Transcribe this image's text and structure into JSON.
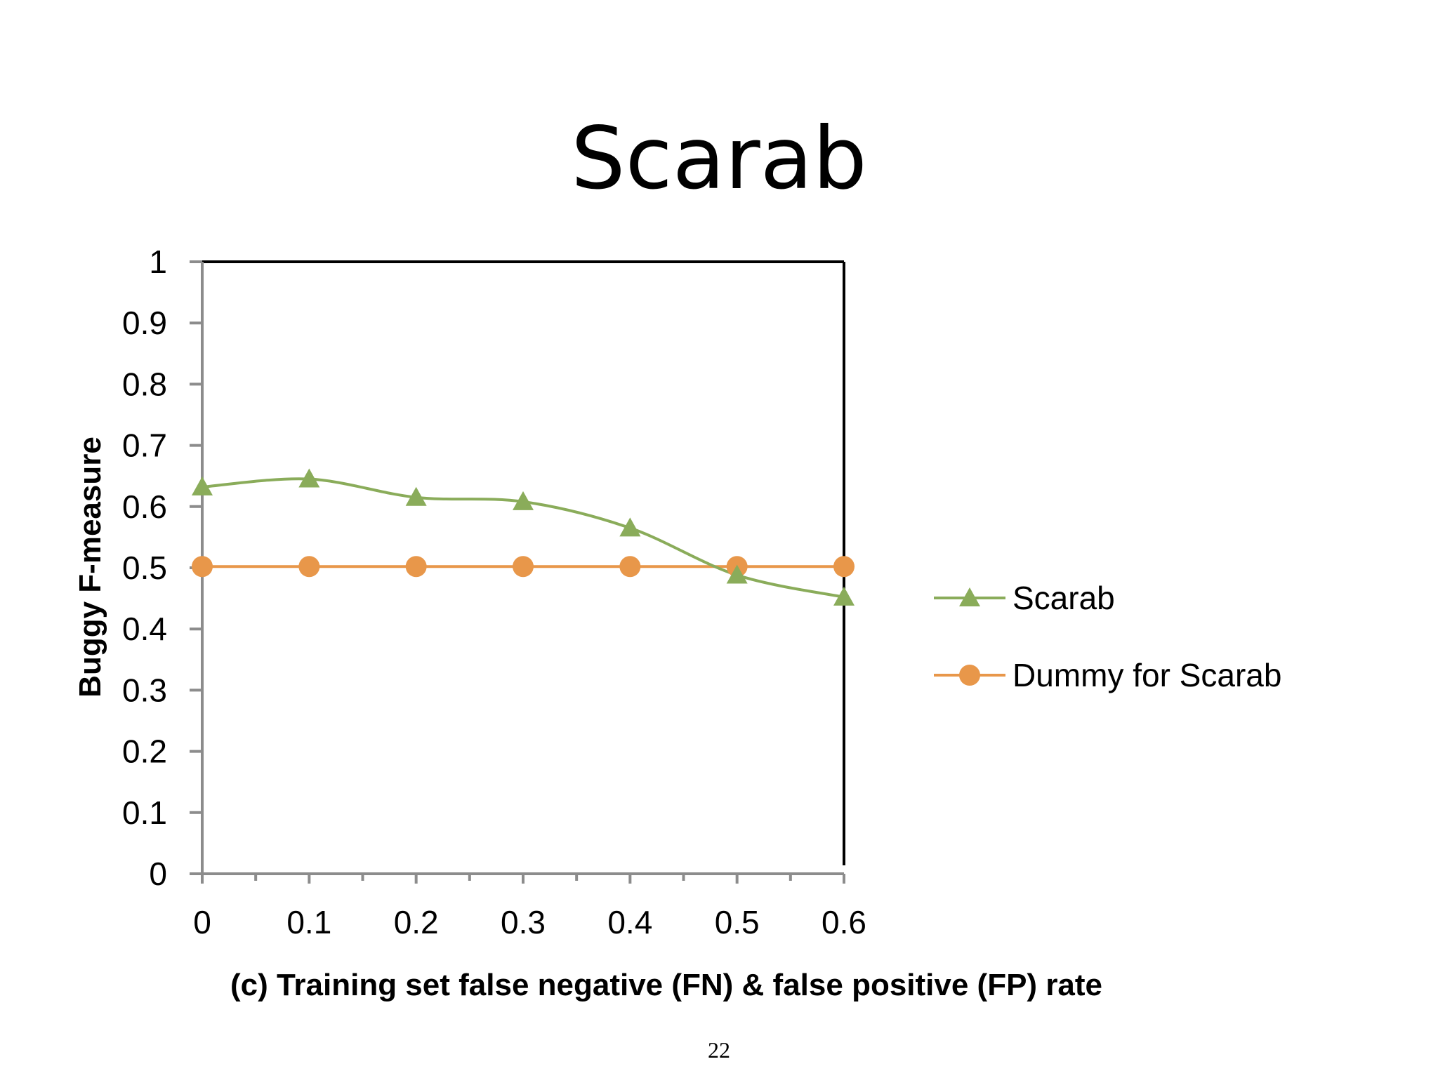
{
  "slide": {
    "title": "Scarab",
    "page_number": "22"
  },
  "chart_data": {
    "type": "line",
    "title": "Scarab",
    "xlabel": "(c) Training set false negative (FN) & false positive (FP) rate",
    "ylabel": "Buggy F-measure",
    "x": [
      0,
      0.1,
      0.2,
      0.3,
      0.4,
      0.5,
      0.6
    ],
    "x_tick_labels": [
      "0",
      "0.1",
      "0.2",
      "0.3",
      "0.4",
      "0.5",
      "0.6"
    ],
    "y_tick_labels": [
      "0",
      "0.1",
      "0.2",
      "0.3",
      "0.4",
      "0.5",
      "0.6",
      "0.7",
      "0.8",
      "0.9",
      "1"
    ],
    "xlim": [
      0,
      0.6
    ],
    "ylim": [
      0,
      1
    ],
    "grid": false,
    "legend_position": "right",
    "series": [
      {
        "name": "Scarab",
        "values": [
          0.632,
          0.645,
          0.615,
          0.608,
          0.565,
          0.488,
          0.452
        ],
        "color": "#8aac5a",
        "marker": "triangle",
        "smooth": true
      },
      {
        "name": "Dummy for Scarab",
        "values": [
          0.502,
          0.502,
          0.502,
          0.502,
          0.502,
          0.502,
          0.502
        ],
        "color": "#e8974a",
        "marker": "circle",
        "smooth": false
      }
    ]
  }
}
